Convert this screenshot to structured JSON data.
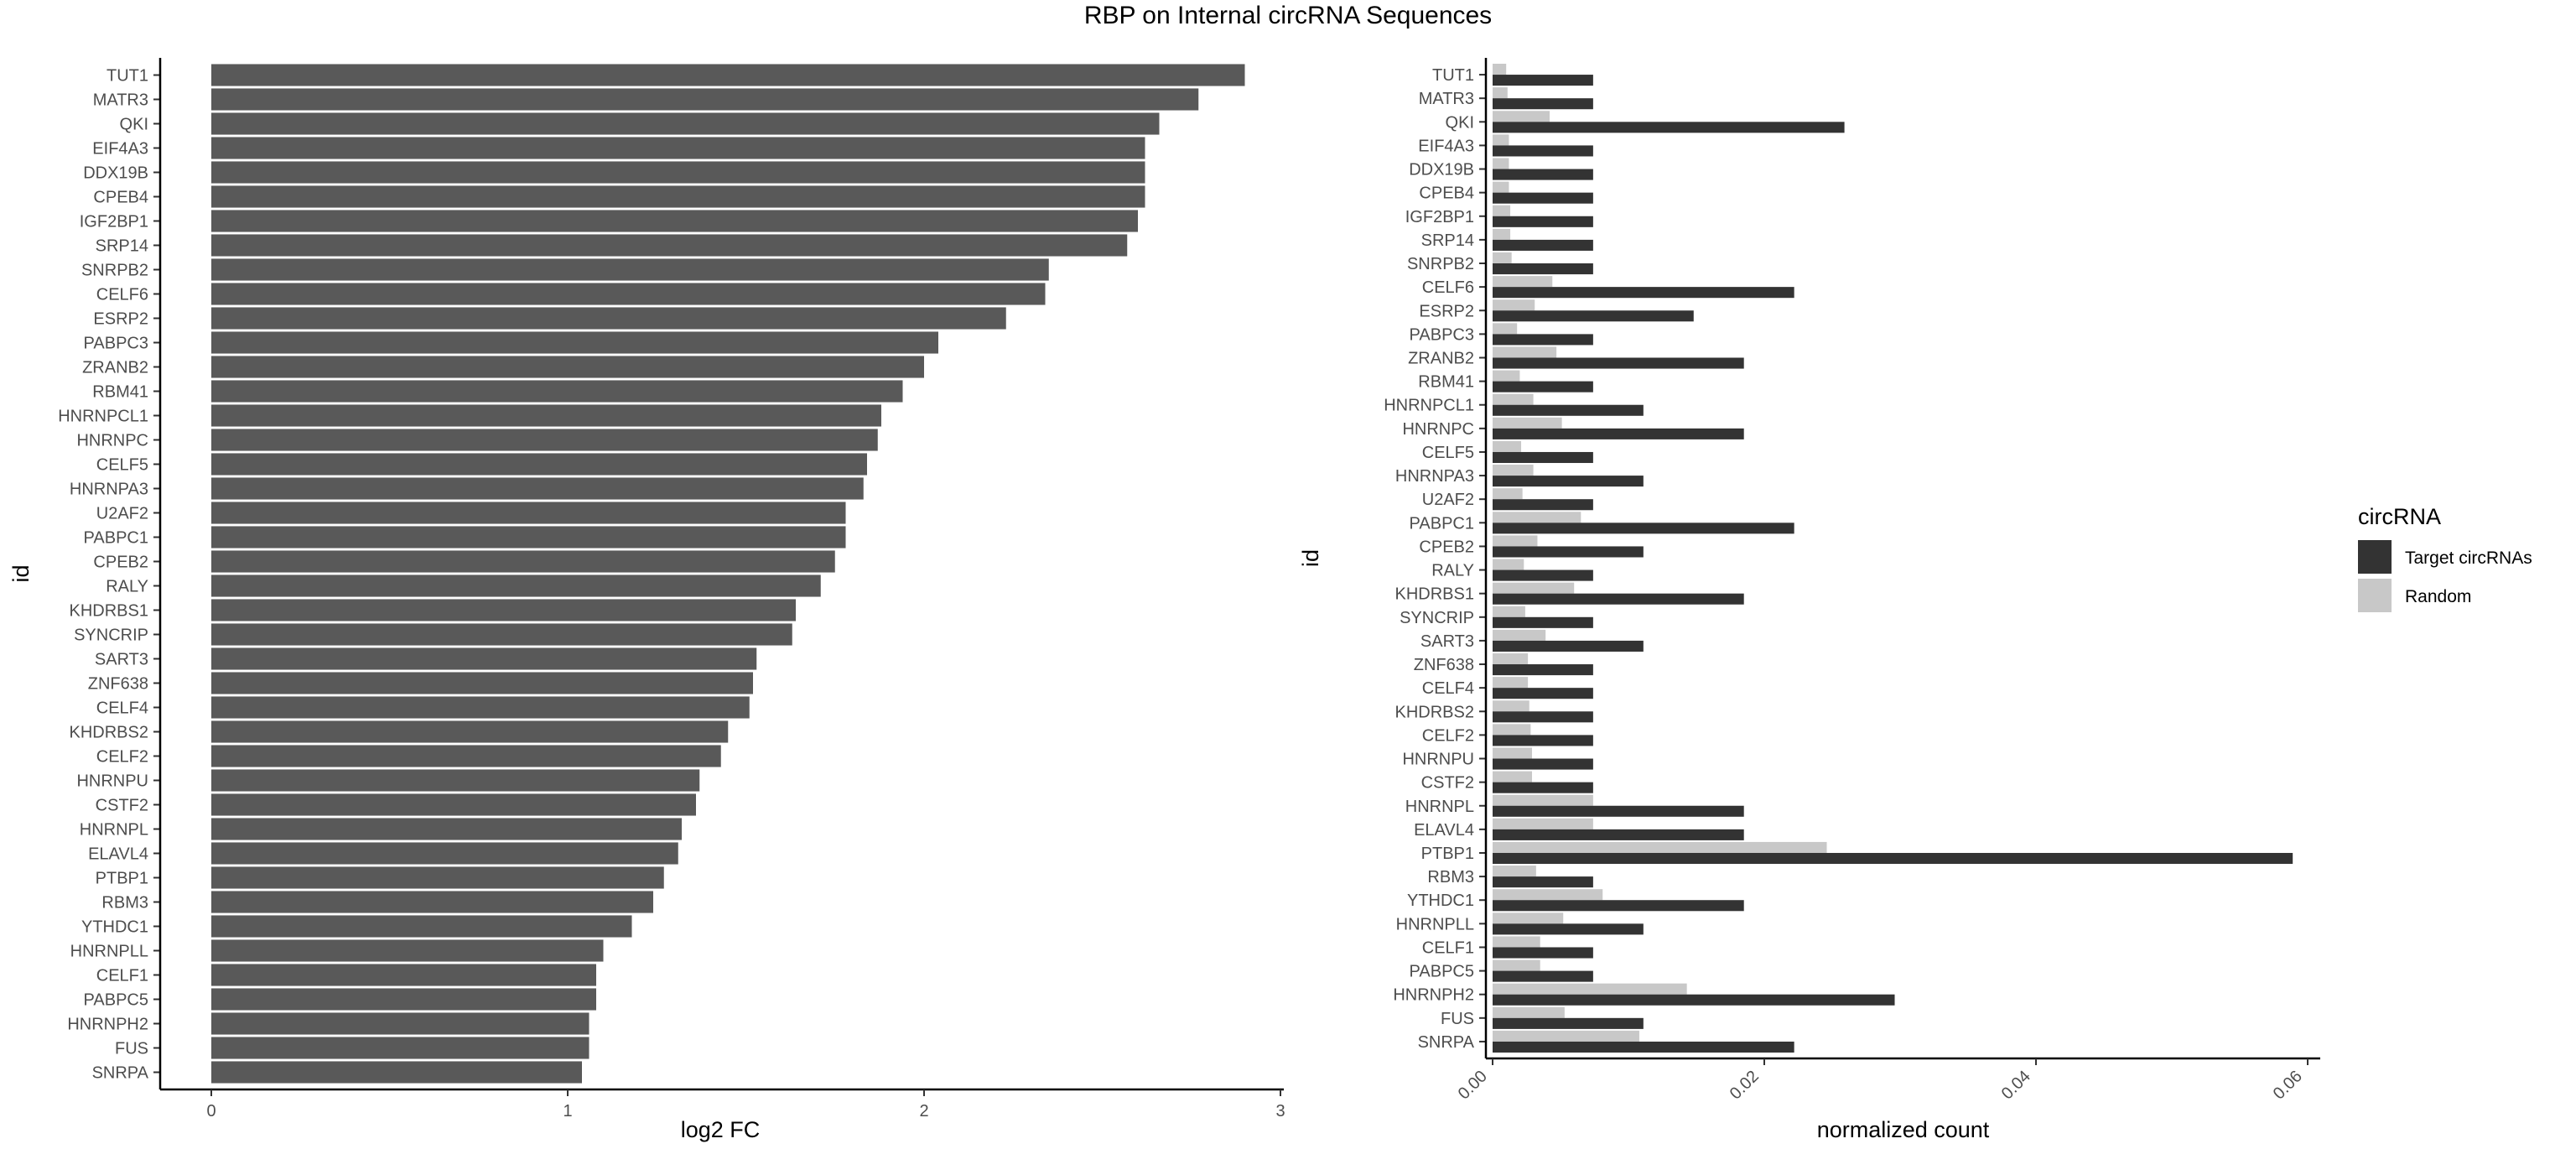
{
  "title": "RBP on Internal circRNA Sequences",
  "chart_data": [
    {
      "type": "bar",
      "orientation": "horizontal",
      "xlabel": "log2 FC",
      "ylabel": "id",
      "xlim": [
        0,
        3
      ],
      "xticks": [
        "0",
        "1",
        "2",
        "3"
      ],
      "bar_color": "#595959",
      "grid": false,
      "categories": [
        "TUT1",
        "MATR3",
        "QKI",
        "EIF4A3",
        "DDX19B",
        "CPEB4",
        "IGF2BP1",
        "SRP14",
        "SNRPB2",
        "CELF6",
        "ESRP2",
        "PABPC3",
        "ZRANB2",
        "RBM41",
        "HNRNPCL1",
        "HNRNPC",
        "CELF5",
        "HNRNPA3",
        "U2AF2",
        "PABPC1",
        "CPEB2",
        "RALY",
        "KHDRBS1",
        "SYNCRIP",
        "SART3",
        "ZNF638",
        "CELF4",
        "KHDRBS2",
        "CELF2",
        "HNRNPU",
        "CSTF2",
        "HNRNPL",
        "ELAVL4",
        "PTBP1",
        "RBM3",
        "YTHDC1",
        "HNRNPLL",
        "CELF1",
        "PABPC5",
        "HNRNPH2",
        "FUS",
        "SNRPA"
      ],
      "values": [
        2.9,
        2.77,
        2.66,
        2.62,
        2.62,
        2.62,
        2.6,
        2.57,
        2.35,
        2.34,
        2.23,
        2.04,
        2.0,
        1.94,
        1.88,
        1.87,
        1.84,
        1.83,
        1.78,
        1.78,
        1.75,
        1.71,
        1.64,
        1.63,
        1.53,
        1.52,
        1.51,
        1.45,
        1.43,
        1.37,
        1.36,
        1.32,
        1.31,
        1.27,
        1.24,
        1.18,
        1.1,
        1.08,
        1.08,
        1.06,
        1.06,
        1.04
      ]
    },
    {
      "type": "bar",
      "orientation": "horizontal",
      "grouped": true,
      "xlabel": "normalized count",
      "ylabel": "id",
      "xlim": [
        0,
        0.062
      ],
      "xticks": [
        "0.00",
        "0.02",
        "0.04",
        "0.06"
      ],
      "tick_rotation": 45,
      "grid": false,
      "legend": {
        "title": "circRNA",
        "position": "right"
      },
      "categories": [
        "TUT1",
        "MATR3",
        "QKI",
        "EIF4A3",
        "DDX19B",
        "CPEB4",
        "IGF2BP1",
        "SRP14",
        "SNRPB2",
        "CELF6",
        "ESRP2",
        "PABPC3",
        "ZRANB2",
        "RBM41",
        "HNRNPCL1",
        "HNRNPC",
        "CELF5",
        "HNRNPA3",
        "U2AF2",
        "PABPC1",
        "CPEB2",
        "RALY",
        "KHDRBS1",
        "SYNCRIP",
        "SART3",
        "ZNF638",
        "CELF4",
        "KHDRBS2",
        "CELF2",
        "HNRNPU",
        "CSTF2",
        "HNRNPL",
        "ELAVL4",
        "PTBP1",
        "RBM3",
        "YTHDC1",
        "HNRNPLL",
        "CELF1",
        "PABPC5",
        "HNRNPH2",
        "FUS",
        "SNRPA"
      ],
      "series": [
        {
          "name": "Target circRNAs",
          "color": "#333333",
          "values": [
            0.0074,
            0.0074,
            0.0259,
            0.0074,
            0.0074,
            0.0074,
            0.0074,
            0.0074,
            0.0074,
            0.0222,
            0.0148,
            0.0074,
            0.0185,
            0.0074,
            0.0111,
            0.0185,
            0.0074,
            0.0111,
            0.0074,
            0.0222,
            0.0111,
            0.0074,
            0.0185,
            0.0074,
            0.0111,
            0.0074,
            0.0074,
            0.0074,
            0.0074,
            0.0074,
            0.0074,
            0.0185,
            0.0185,
            0.0589,
            0.0074,
            0.0185,
            0.0111,
            0.0074,
            0.0074,
            0.0296,
            0.0111,
            0.0222
          ]
        },
        {
          "name": "Random",
          "color": "#c8c8c8",
          "values": [
            0.001,
            0.0011,
            0.0042,
            0.0012,
            0.0012,
            0.0012,
            0.0013,
            0.0013,
            0.0014,
            0.0044,
            0.0031,
            0.0018,
            0.0047,
            0.002,
            0.003,
            0.0051,
            0.0021,
            0.003,
            0.0022,
            0.0065,
            0.0033,
            0.0023,
            0.006,
            0.0024,
            0.0039,
            0.0026,
            0.0026,
            0.0027,
            0.0028,
            0.0029,
            0.0029,
            0.0074,
            0.0074,
            0.0246,
            0.0032,
            0.0081,
            0.0052,
            0.0035,
            0.0035,
            0.0143,
            0.0053,
            0.0108
          ]
        }
      ]
    }
  ]
}
